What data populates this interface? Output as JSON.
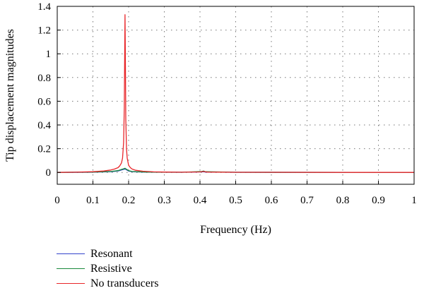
{
  "chart_data": {
    "type": "line",
    "title": "",
    "xlabel": "Frequency (Hz)",
    "ylabel": "Tip displacement magnitudes",
    "xlim": [
      0,
      1
    ],
    "ylim": [
      -0.1,
      1.4
    ],
    "xticks": [
      0,
      0.1,
      0.2,
      0.3,
      0.4,
      0.5,
      0.6,
      0.7,
      0.8,
      0.9,
      1
    ],
    "xtick_labels": [
      "0",
      "0.1",
      "0.2",
      "0.3",
      "0.4",
      "0.5",
      "0.6",
      "0.7",
      "0.8",
      "0.9",
      "1"
    ],
    "yticks": [
      0,
      0.2,
      0.4,
      0.6,
      0.8,
      1,
      1.2,
      1.4
    ],
    "ytick_labels": [
      "0",
      "0.2",
      "0.4",
      "0.6",
      "0.8",
      "1",
      "1.2",
      "1.4"
    ],
    "grid": true,
    "legend_position": "bottom-left, below plot",
    "series": [
      {
        "name": "Resonant",
        "color": "#3344cc",
        "x": [
          0,
          0.1,
          0.15,
          0.17,
          0.18,
          0.185,
          0.19,
          0.192,
          0.195,
          0.2,
          0.21,
          0.25,
          0.35,
          0.405,
          0.41,
          0.415,
          0.5,
          1
        ],
        "y": [
          0,
          0.002,
          0.006,
          0.012,
          0.02,
          0.025,
          0.028,
          0.026,
          0.02,
          0.012,
          0.006,
          0.002,
          0.001,
          0.004,
          0.006,
          0.003,
          0.001,
          0
        ]
      },
      {
        "name": "Resistive",
        "color": "#1a8a3c",
        "x": [
          0,
          0.1,
          0.15,
          0.17,
          0.18,
          0.185,
          0.19,
          0.192,
          0.195,
          0.2,
          0.21,
          0.25,
          0.35,
          0.405,
          0.41,
          0.415,
          0.5,
          1
        ],
        "y": [
          0,
          0.003,
          0.008,
          0.015,
          0.025,
          0.03,
          0.035,
          0.03,
          0.025,
          0.015,
          0.008,
          0.003,
          0.001,
          0.008,
          0.012,
          0.006,
          0.001,
          0
        ]
      },
      {
        "name": "No transducers",
        "color": "#e8262a",
        "x": [
          0,
          0.05,
          0.1,
          0.13,
          0.15,
          0.16,
          0.17,
          0.175,
          0.18,
          0.183,
          0.186,
          0.188,
          0.189,
          0.19,
          0.191,
          0.192,
          0.194,
          0.196,
          0.2,
          0.205,
          0.21,
          0.22,
          0.24,
          0.27,
          0.3,
          0.35,
          0.4,
          0.41,
          0.42,
          0.5,
          0.6,
          0.8,
          1
        ],
        "y": [
          0,
          0.002,
          0.006,
          0.012,
          0.02,
          0.028,
          0.04,
          0.055,
          0.08,
          0.12,
          0.25,
          0.55,
          0.95,
          1.33,
          0.9,
          0.45,
          0.2,
          0.12,
          0.06,
          0.04,
          0.028,
          0.018,
          0.01,
          0.005,
          0.003,
          0.002,
          0.004,
          0.008,
          0.003,
          0.001,
          0.001,
          0,
          0
        ]
      }
    ]
  }
}
